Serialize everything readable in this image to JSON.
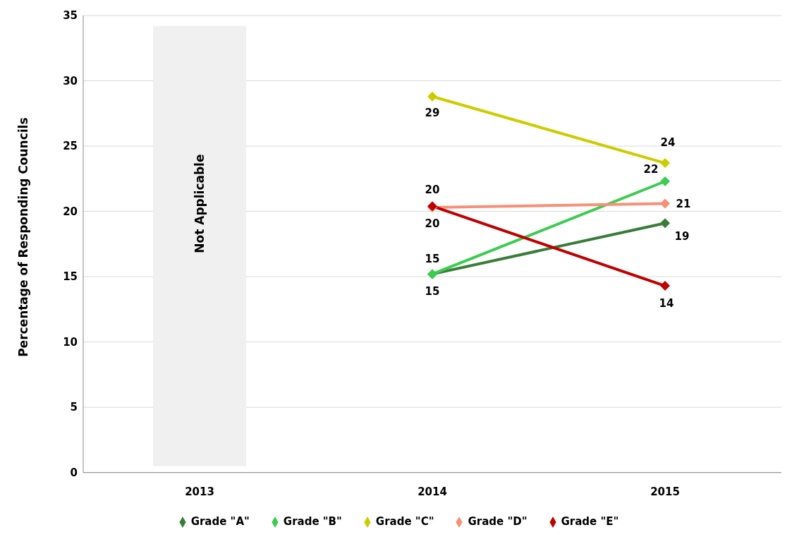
{
  "chart_data": {
    "type": "line",
    "ylabel": "Percentage of Responding Councils",
    "categories": [
      "2013",
      "2014",
      "2015"
    ],
    "series": [
      {
        "name": "Grade \"A\"",
        "color": "#3a7d3a",
        "values": [
          null,
          15.2,
          19.1
        ],
        "value_labels": [
          null,
          "15",
          "19"
        ]
      },
      {
        "name": "Grade \"B\"",
        "color": "#3ccc50",
        "values": [
          null,
          15.2,
          22.3
        ],
        "value_labels": [
          null,
          "15",
          "22"
        ]
      },
      {
        "name": "Grade \"C\"",
        "color": "#cccc00",
        "values": [
          null,
          28.8,
          23.7
        ],
        "value_labels": [
          null,
          "29",
          "24"
        ]
      },
      {
        "name": "Grade \"D\"",
        "color": "#f79078",
        "values": [
          null,
          20.3,
          20.6
        ],
        "value_labels": [
          null,
          "20",
          "21"
        ]
      },
      {
        "name": "Grade \"E\"",
        "color": "#c00000",
        "values": [
          null,
          20.4,
          14.3
        ],
        "value_labels": [
          null,
          "20",
          "14"
        ]
      }
    ],
    "bands": [
      {
        "axis": "x",
        "from": "2013",
        "to": "2013",
        "label": "Not Applicable",
        "color": "#f0f0f0"
      }
    ],
    "ylim": [
      0,
      35
    ],
    "yticks": [
      0,
      5,
      10,
      15,
      20,
      25,
      30,
      35
    ],
    "grid": "y",
    "legend": "bottom",
    "marker": "diamond",
    "line_style": "solid"
  }
}
